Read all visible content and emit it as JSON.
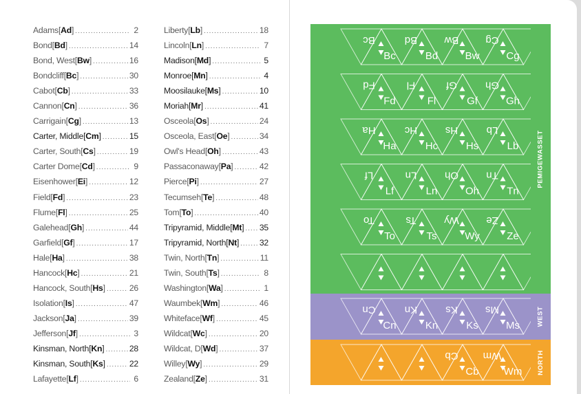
{
  "index": {
    "column_a": [
      {
        "name": "Adams",
        "code": "Ad",
        "page": "2",
        "dark": false
      },
      {
        "name": "Bond",
        "code": "Bd",
        "page": "14",
        "dark": false
      },
      {
        "name": "Bond, West",
        "code": "Bw",
        "page": "16",
        "dark": false
      },
      {
        "name": "Bondcliff",
        "code": "Bc",
        "page": "30",
        "dark": false
      },
      {
        "name": "Cabot",
        "code": "Cb",
        "page": "33",
        "dark": false
      },
      {
        "name": "Cannon",
        "code": "Cn",
        "page": "36",
        "dark": false
      },
      {
        "name": "Carrigain",
        "code": "Cg",
        "page": "13",
        "dark": false
      },
      {
        "name": "Carter, Middle",
        "code": "Cm",
        "page": "15",
        "dark": true
      },
      {
        "name": "Carter, South",
        "code": "Cs",
        "page": "19",
        "dark": false
      },
      {
        "name": "Carter Dome",
        "code": "Cd",
        "page": "9",
        "dark": false
      },
      {
        "name": "Eisenhower",
        "code": "Ei",
        "page": "12",
        "dark": false
      },
      {
        "name": "Field",
        "code": "Fd",
        "page": "23",
        "dark": false
      },
      {
        "name": "Flume",
        "code": "Fl",
        "page": "25",
        "dark": false
      },
      {
        "name": "Galehead",
        "code": "Gh",
        "page": "44",
        "dark": false
      },
      {
        "name": "Garfield",
        "code": "Gf",
        "page": "17",
        "dark": false
      },
      {
        "name": "Hale",
        "code": "Ha",
        "page": "38",
        "dark": false
      },
      {
        "name": "Hancock",
        "code": "Hc",
        "page": "21",
        "dark": false
      },
      {
        "name": "Hancock, South",
        "code": "Hs",
        "page": "26",
        "dark": false
      },
      {
        "name": "Isolation",
        "code": "Is",
        "page": "47",
        "dark": false
      },
      {
        "name": "Jackson",
        "code": "Ja",
        "page": "39",
        "dark": false
      },
      {
        "name": "Jefferson",
        "code": "Jf",
        "page": "3",
        "dark": false
      },
      {
        "name": "Kinsman, North",
        "code": "Kn",
        "page": "28",
        "dark": true
      },
      {
        "name": "Kinsman, South",
        "code": "Ks",
        "page": "22",
        "dark": true
      },
      {
        "name": "Lafayette",
        "code": "Lf",
        "page": "6",
        "dark": false
      }
    ],
    "column_b": [
      {
        "name": "Liberty",
        "code": "Lb",
        "page": "18",
        "dark": false
      },
      {
        "name": "Lincoln",
        "code": "Ln",
        "page": "7",
        "dark": false
      },
      {
        "name": "Madison",
        "code": "Md",
        "page": "5",
        "dark": true
      },
      {
        "name": "Monroe",
        "code": "Mn",
        "page": "4",
        "dark": true
      },
      {
        "name": "Moosilauke",
        "code": "Ms",
        "page": "10",
        "dark": true
      },
      {
        "name": "Moriah",
        "code": "Mr",
        "page": "41",
        "dark": true
      },
      {
        "name": "Osceola",
        "code": "Os",
        "page": "24",
        "dark": false
      },
      {
        "name": "Osceola, East",
        "code": "Oe",
        "page": "34",
        "dark": false
      },
      {
        "name": "Owl's Head",
        "code": "Oh",
        "page": "43",
        "dark": false
      },
      {
        "name": "Passaconaway",
        "code": "Pa",
        "page": "42",
        "dark": false
      },
      {
        "name": "Pierce",
        "code": "Pi",
        "page": "27",
        "dark": false
      },
      {
        "name": "Tecumseh",
        "code": "Te",
        "page": "48",
        "dark": false
      },
      {
        "name": "Tom",
        "code": "To",
        "page": "40",
        "dark": false
      },
      {
        "name": "Tripyramid, Middle",
        "code": "Mt",
        "page": "35",
        "dark": true
      },
      {
        "name": "Tripyramid, North",
        "code": "Nt",
        "page": "32",
        "dark": true
      },
      {
        "name": "Twin, North",
        "code": "Tn",
        "page": "11",
        "dark": false
      },
      {
        "name": "Twin, South",
        "code": "Ts",
        "page": "8",
        "dark": false
      },
      {
        "name": "Washington",
        "code": "Wa",
        "page": "1",
        "dark": false
      },
      {
        "name": "Waumbek",
        "code": "Wm",
        "page": "46",
        "dark": false
      },
      {
        "name": "Whiteface",
        "code": "Wf",
        "page": "45",
        "dark": false
      },
      {
        "name": "Wildcat",
        "code": "Wc",
        "page": "20",
        "dark": false
      },
      {
        "name": "Wildcat, D",
        "code": "Wd",
        "page": "37",
        "dark": false
      },
      {
        "name": "Willey",
        "code": "Wy",
        "page": "29",
        "dark": false
      },
      {
        "name": "Zealand",
        "code": "Ze",
        "page": "31",
        "dark": false
      }
    ]
  },
  "colors": {
    "pemigewasset": "#5cbc5e",
    "west": "#9b93c9",
    "north": "#f4a52c",
    "text_light": "#5a5a5a",
    "text_dark": "#1e1e1e"
  },
  "regions": [
    {
      "key": "pemigewasset",
      "label": "PEMIGEWASSET",
      "strips": [
        [
          "Bc",
          "Bd",
          "Bw",
          "Cg"
        ],
        [
          "Fd",
          "Fl",
          "Gf",
          "Gh"
        ],
        [
          "Ha",
          "Hc",
          "Hs",
          "Lb"
        ],
        [
          "Lf",
          "Ln",
          "Oh",
          "Tn"
        ],
        [
          "To",
          "Ts",
          "Wy",
          "Ze"
        ],
        [
          "",
          "",
          "",
          ""
        ]
      ]
    },
    {
      "key": "west",
      "label": "WEST",
      "strips": [
        [
          "Cn",
          "Kn",
          "Ks",
          "Ms"
        ]
      ]
    },
    {
      "key": "north",
      "label": "NORTH",
      "strips": [
        [
          "",
          "",
          "Cb",
          "Wm"
        ]
      ]
    }
  ]
}
